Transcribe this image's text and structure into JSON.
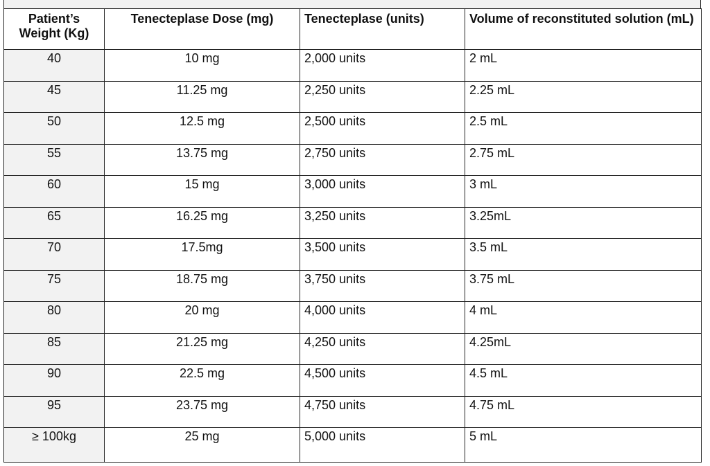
{
  "headers": [
    "Patient’s Weight (Kg)",
    "Tenecteplase Dose (mg)",
    "Tenecteplase (units)",
    "Volume of reconstituted solution (mL)"
  ],
  "rows": [
    [
      "40",
      "10 mg",
      "2,000 units",
      "2 mL"
    ],
    [
      "45",
      "11.25 mg",
      "2,250 units",
      "2.25 mL"
    ],
    [
      "50",
      "12.5 mg",
      "2,500 units",
      "2.5 mL"
    ],
    [
      "55",
      "13.75 mg",
      "2,750 units",
      "2.75 mL"
    ],
    [
      "60",
      "15 mg",
      "3,000 units",
      "3 mL"
    ],
    [
      "65",
      "16.25 mg",
      "3,250 units",
      "3.25mL"
    ],
    [
      "70",
      "17.5mg",
      "3,500 units",
      "3.5 mL"
    ],
    [
      "75",
      "18.75 mg",
      "3,750 units",
      "3.75 mL"
    ],
    [
      "80",
      "20 mg",
      "4,000 units",
      "4 mL"
    ],
    [
      "85",
      "21.25 mg",
      "4,250 units",
      "4.25mL"
    ],
    [
      "90",
      "22.5 mg",
      "4,500 units",
      "4.5 mL"
    ],
    [
      "95",
      "23.75 mg",
      "4,750 units",
      "4.75 mL"
    ],
    [
      "≥ 100kg",
      "25 mg",
      "5,000 units",
      "5 mL"
    ]
  ]
}
